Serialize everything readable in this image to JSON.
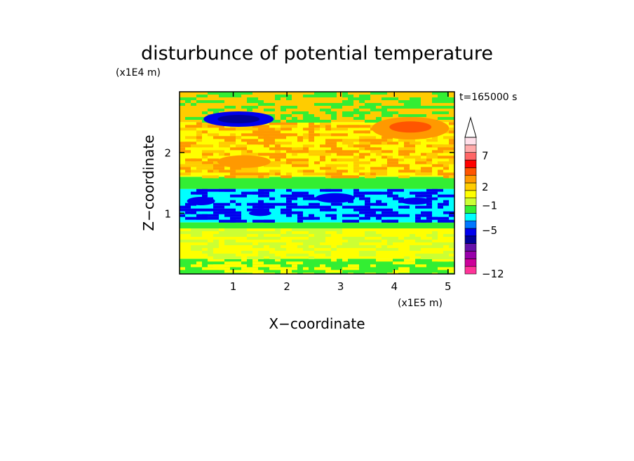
{
  "chart_data": {
    "type": "heatmap",
    "title": "disturbunce of potential temperature",
    "time_label": "t=165000 s",
    "xlabel": "X−coordinate",
    "ylabel": "Z−coordinate",
    "x_unit": "(x1E5 m)",
    "y_unit": "(x1E4 m)",
    "xlim": [
      0,
      5.12
    ],
    "ylim": [
      0,
      3.0
    ],
    "x_ticks": [
      "1",
      "2",
      "3",
      "4",
      "5"
    ],
    "x_tick_values": [
      1,
      2,
      3,
      4,
      5
    ],
    "y_ticks": [
      "1",
      "2"
    ],
    "y_tick_values": [
      1,
      2
    ],
    "colorbar": {
      "tick_labels": [
        "7",
        "2",
        "−1",
        "−5",
        "−12"
      ],
      "tick_values": [
        7,
        2,
        -1,
        -5,
        -12
      ],
      "colors": [
        "#ff3399",
        "#cc0099",
        "#9900aa",
        "#6611aa",
        "#000099",
        "#0000ee",
        "#0077ff",
        "#00ffff",
        "#33ee33",
        "#ccff33",
        "#ffff00",
        "#ffcc00",
        "#ff9900",
        "#ff5500",
        "#ff0000",
        "#ff6666",
        "#ffaaaa",
        "#ffe0ea"
      ],
      "extend": "max"
    },
    "bands": [
      {
        "z": [
          0.0,
          0.25
        ],
        "colors": [
          "#33ee33",
          "#ffff00"
        ]
      },
      {
        "z": [
          0.25,
          0.75
        ],
        "colors": [
          "#ffff00",
          "#ccff33"
        ]
      },
      {
        "z": [
          0.75,
          0.85
        ],
        "colors": [
          "#33ee33"
        ]
      },
      {
        "z": [
          0.85,
          1.4
        ],
        "colors": [
          "#00ffff",
          "#0000ee"
        ]
      },
      {
        "z": [
          1.4,
          1.6
        ],
        "colors": [
          "#33ee33"
        ]
      },
      {
        "z": [
          1.6,
          2.5
        ],
        "colors": [
          "#ffff00",
          "#ffcc00",
          "#ff9900"
        ]
      },
      {
        "z": [
          2.5,
          3.0
        ],
        "colors": [
          "#ffcc00",
          "#33ee33"
        ]
      }
    ]
  }
}
